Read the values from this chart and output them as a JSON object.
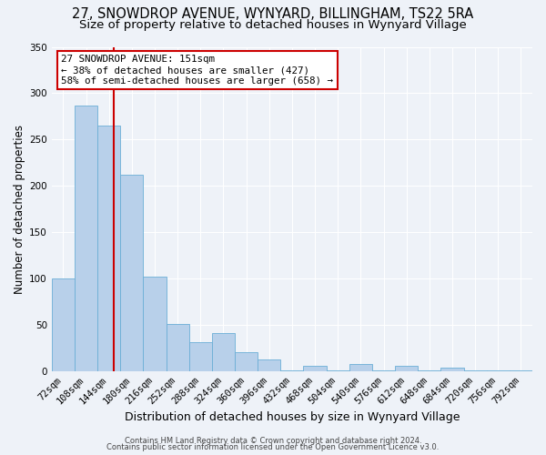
{
  "title": "27, SNOWDROP AVENUE, WYNYARD, BILLINGHAM, TS22 5RA",
  "subtitle": "Size of property relative to detached houses in Wynyard Village",
  "xlabel": "Distribution of detached houses by size in Wynyard Village",
  "ylabel": "Number of detached properties",
  "footer_lines": [
    "Contains HM Land Registry data © Crown copyright and database right 2024.",
    "Contains public sector information licensed under the Open Government Licence v3.0."
  ],
  "bin_labels": [
    "72sqm",
    "108sqm",
    "144sqm",
    "180sqm",
    "216sqm",
    "252sqm",
    "288sqm",
    "324sqm",
    "360sqm",
    "396sqm",
    "432sqm",
    "468sqm",
    "504sqm",
    "540sqm",
    "576sqm",
    "612sqm",
    "648sqm",
    "684sqm",
    "720sqm",
    "756sqm",
    "792sqm"
  ],
  "bar_values": [
    100,
    287,
    265,
    212,
    102,
    51,
    31,
    41,
    21,
    13,
    1,
    6,
    1,
    8,
    1,
    6,
    1,
    4,
    1,
    1,
    1
  ],
  "bar_color": "#b8d0ea",
  "bar_edge_color": "#6baed6",
  "property_line_x": 2.22,
  "annotation_title": "27 SNOWDROP AVENUE: 151sqm",
  "annotation_line1": "← 38% of detached houses are smaller (427)",
  "annotation_line2": "58% of semi-detached houses are larger (658) →",
  "annotation_box_color": "#ffffff",
  "annotation_box_edge_color": "#cc0000",
  "vline_color": "#cc0000",
  "ylim": [
    0,
    350
  ],
  "yticks": [
    0,
    50,
    100,
    150,
    200,
    250,
    300,
    350
  ],
  "background_color": "#eef2f8",
  "plot_background": "#eef2f8",
  "grid_color": "#ffffff",
  "title_fontsize": 10.5,
  "subtitle_fontsize": 9.5,
  "xlabel_fontsize": 9,
  "ylabel_fontsize": 8.5,
  "tick_fontsize": 7.5,
  "annotation_fontsize": 7.8,
  "footer_fontsize": 6.0
}
